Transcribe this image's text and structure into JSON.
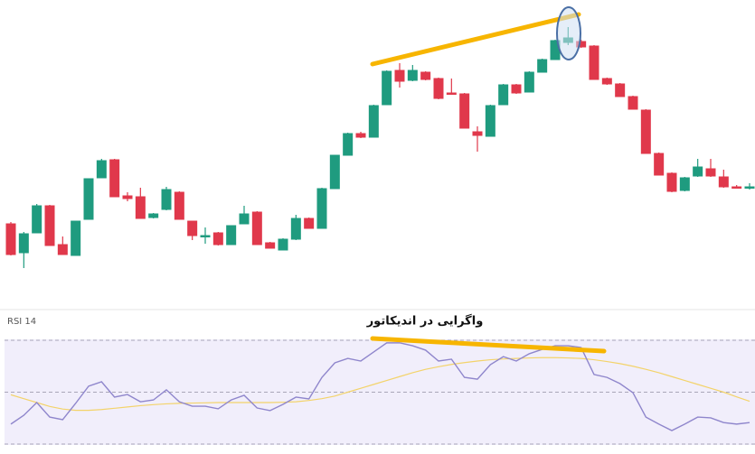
{
  "chart_data": [
    {
      "type": "candlestick",
      "up_color": "#1f9b7f",
      "down_color": "#e0384b",
      "ylim": [
        0,
        350
      ],
      "open": [
        102,
        70,
        92,
        122,
        79,
        67,
        107,
        153,
        173,
        133,
        132,
        109,
        118,
        137,
        105,
        89,
        92,
        79,
        102,
        115,
        81,
        73,
        85,
        108,
        97,
        141,
        178,
        202,
        198,
        234,
        272,
        261,
        270,
        263,
        247,
        246,
        204,
        199,
        234,
        256,
        248,
        270,
        284,
        303,
        304,
        299,
        263,
        257,
        243,
        228,
        180,
        158,
        139,
        155,
        163,
        154,
        143,
        143
      ],
      "high": [
        104,
        93,
        124,
        123,
        88,
        105,
        152,
        174,
        174,
        137,
        142,
        114,
        143,
        138,
        105,
        98,
        93,
        100,
        122,
        116,
        82,
        86,
        112,
        109,
        142,
        178,
        203,
        204,
        234,
        272,
        280,
        278,
        271,
        264,
        263,
        247,
        210,
        234,
        257,
        257,
        271,
        285,
        306,
        320,
        306,
        300,
        264,
        258,
        244,
        229,
        181,
        159,
        154,
        174,
        174,
        162,
        145,
        147
      ],
      "low": [
        67,
        53,
        92,
        78,
        68,
        67,
        107,
        153,
        132,
        127,
        108,
        108,
        117,
        107,
        84,
        80,
        78,
        79,
        102,
        79,
        75,
        73,
        84,
        97,
        97,
        141,
        178,
        197,
        198,
        234,
        253,
        260,
        261,
        240,
        245,
        208,
        182,
        199,
        234,
        246,
        248,
        270,
        284,
        300,
        297,
        262,
        256,
        243,
        229,
        180,
        156,
        137,
        138,
        154,
        154,
        142,
        141,
        140
      ],
      "close": [
        68,
        91,
        122,
        78,
        68,
        105,
        152,
        172,
        132,
        130,
        108,
        113,
        140,
        107,
        89,
        89,
        79,
        100,
        113,
        79,
        75,
        85,
        108,
        97,
        141,
        178,
        202,
        198,
        233,
        271,
        260,
        272,
        262,
        241,
        246,
        208,
        200,
        233,
        256,
        247,
        270,
        284,
        305,
        308,
        298,
        262,
        257,
        243,
        229,
        180,
        156,
        138,
        153,
        165,
        155,
        143,
        142,
        143
      ]
    },
    {
      "type": "line",
      "title": "RSI 14",
      "annotation": "واگرایی در اندیکاتور",
      "ylim": [
        30,
        70
      ],
      "levels": [
        70,
        50,
        30
      ],
      "series": [
        {
          "color": "#8f86cc",
          "values": [
            37.7,
            41.1,
            46.0,
            40.4,
            39.4,
            45.7,
            52.3,
            54.0,
            48.1,
            49.1,
            46.3,
            47.0,
            50.9,
            46.3,
            44.6,
            44.6,
            43.6,
            47.0,
            48.8,
            43.9,
            42.9,
            45.3,
            48.1,
            47.4,
            55.7,
            61.3,
            63.0,
            62.0,
            65.5,
            69.0,
            69.0,
            67.9,
            66.2,
            62.0,
            62.7,
            55.7,
            55.0,
            60.6,
            63.7,
            62.0,
            64.8,
            66.5,
            67.9,
            67.9,
            67.2,
            56.8,
            55.7,
            53.3,
            49.8,
            40.4,
            37.7,
            35.2,
            37.7,
            40.4,
            40.1,
            38.3,
            37.7,
            38.3
          ]
        },
        {
          "color": "#f3d36a",
          "values": [
            49.0,
            47.5,
            46.0,
            44.5,
            43.5,
            43.0,
            43.0,
            43.3,
            43.8,
            44.3,
            44.8,
            45.2,
            45.5,
            45.7,
            45.8,
            45.9,
            46.0,
            46.0,
            46.0,
            46.0,
            46.0,
            46.1,
            46.3,
            46.8,
            47.5,
            48.5,
            50.0,
            51.5,
            53.0,
            54.5,
            56.0,
            57.5,
            58.8,
            59.8,
            60.7,
            61.4,
            62.0,
            62.5,
            62.8,
            63.0,
            63.2,
            63.3,
            63.3,
            63.2,
            63.0,
            62.5,
            61.8,
            61.0,
            60.0,
            58.8,
            57.5,
            56.0,
            54.5,
            53.0,
            51.5,
            50.0,
            48.2,
            46.5
          ]
        }
      ]
    }
  ]
}
